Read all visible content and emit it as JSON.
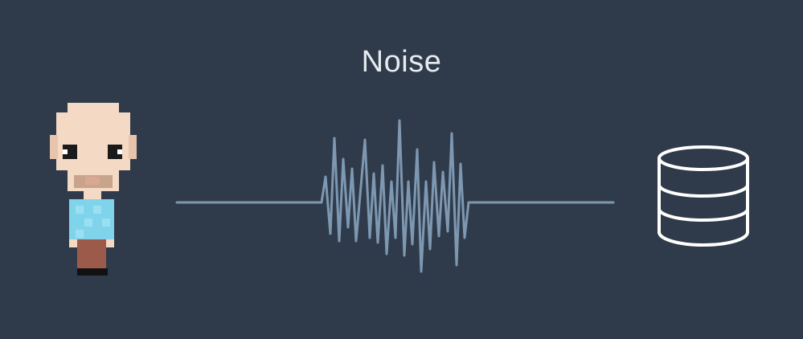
{
  "diagram": {
    "title": "Noise",
    "nodes": [
      {
        "id": "person",
        "icon": "pixel-person-icon"
      },
      {
        "id": "database",
        "icon": "database-icon"
      }
    ],
    "edge": {
      "from": "person",
      "to": "database",
      "style": "noisy-signal"
    }
  },
  "colors": {
    "background": "#2f3b4a",
    "title": "#e6ebf0",
    "signal": "#7e98b2",
    "database_stroke": "#ffffff",
    "skin": "#f4d9c4",
    "skin_shadow": "#e9c4ac",
    "eye_dark": "#1a1a1a",
    "eye_white": "#ffffff",
    "nose": "#d9a892",
    "beard": "#c9a48c",
    "shirt": "#7fd4ec",
    "shirt_check": "#9ae0f2",
    "pants": "#9b5a4a",
    "shoes": "#111111"
  }
}
